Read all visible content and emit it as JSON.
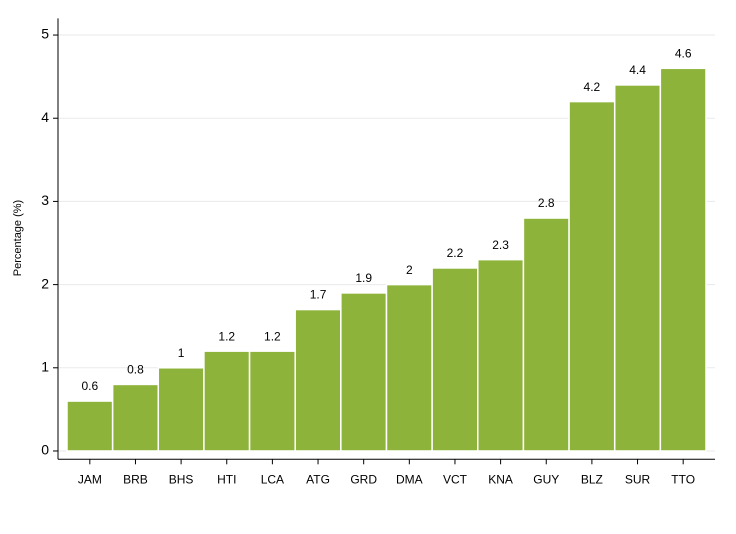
{
  "chart_data": {
    "type": "bar",
    "y_label": "Percentage (%)",
    "categories": [
      "JAM",
      "BRB",
      "BHS",
      "HTI",
      "LCA",
      "ATG",
      "GRD",
      "DMA",
      "VCT",
      "KNA",
      "GUY",
      "BLZ",
      "SUR",
      "TTO"
    ],
    "values": [
      0.6,
      0.8,
      1,
      1.2,
      1.2,
      1.7,
      1.9,
      2,
      2.2,
      2.3,
      2.8,
      4.2,
      4.4,
      4.6
    ],
    "color": "#8db33a",
    "ylim": [
      -0.1,
      5.2
    ],
    "yticks": [
      0,
      1,
      2,
      3,
      4,
      5
    ],
    "grid": true
  }
}
